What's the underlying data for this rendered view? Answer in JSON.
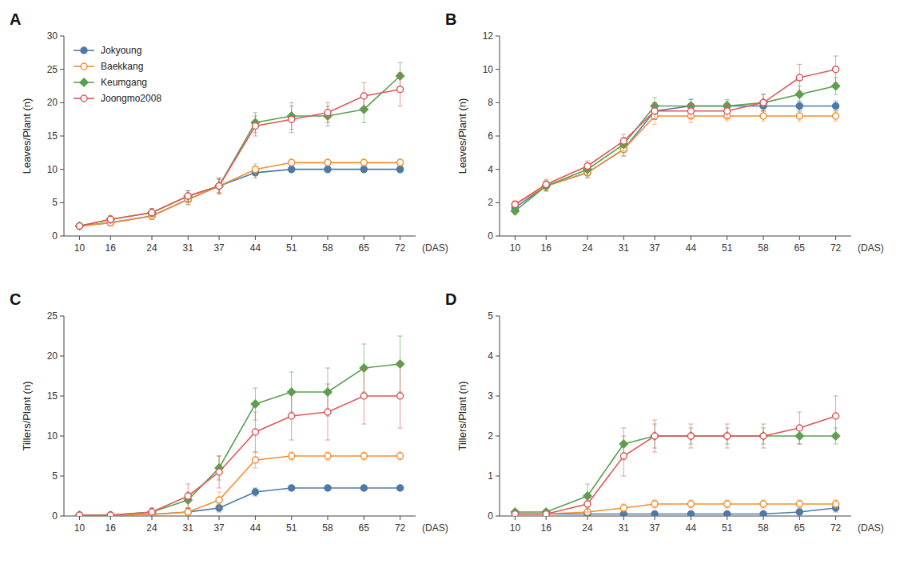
{
  "chart_data": [
    {
      "type": "line",
      "title": "A",
      "ylabel": "Leaves/Plant (n)",
      "xlabel": "(DAS)",
      "x": [
        10,
        16,
        24,
        31,
        37,
        44,
        51,
        58,
        65,
        72
      ],
      "xlim": [
        7,
        75
      ],
      "xticks": [
        10,
        16,
        24,
        31,
        37,
        44,
        51,
        58,
        65,
        72
      ],
      "ylim": [
        0,
        30
      ],
      "yticks": [
        0,
        5,
        10,
        15,
        20,
        25,
        30
      ],
      "grid": false,
      "legend": "upper left",
      "series": [
        {
          "name": "Jokyoung",
          "marker": "circle",
          "values": [
            1.5,
            2.0,
            3.0,
            5.5,
            7.5,
            9.5,
            10.0,
            10.0,
            10.0,
            10.0
          ],
          "errors": [
            0.3,
            0.4,
            0.5,
            0.8,
            1.0,
            0.8,
            0.5,
            0.5,
            0.5,
            0.5
          ]
        },
        {
          "name": "Baekkang",
          "marker": "open-circle",
          "values": [
            1.5,
            2.0,
            3.0,
            5.5,
            7.5,
            10.0,
            11.0,
            11.0,
            11.0,
            11.0
          ],
          "errors": [
            0.3,
            0.4,
            0.5,
            0.8,
            1.0,
            0.8,
            0.5,
            0.5,
            0.5,
            0.5
          ]
        },
        {
          "name": "Keumgang",
          "marker": "diamond",
          "values": [
            1.5,
            2.5,
            3.5,
            6.0,
            7.5,
            17.0,
            18.0,
            18.0,
            19.0,
            24.0
          ],
          "errors": [
            0.3,
            0.5,
            0.6,
            0.8,
            1.2,
            1.5,
            2.0,
            1.5,
            2.0,
            2.0
          ]
        },
        {
          "name": "Joongmo2008",
          "marker": "open-circle",
          "values": [
            1.5,
            2.5,
            3.5,
            6.0,
            7.5,
            16.5,
            17.5,
            18.5,
            21.0,
            22.0
          ],
          "errors": [
            0.3,
            0.5,
            0.6,
            0.8,
            1.2,
            1.5,
            2.0,
            1.5,
            2.0,
            2.5
          ]
        }
      ]
    },
    {
      "type": "line",
      "title": "B",
      "ylabel": "Leaves/Plant (n)",
      "xlabel": "(DAS)",
      "x": [
        10,
        16,
        24,
        31,
        37,
        44,
        51,
        58,
        65,
        72
      ],
      "xlim": [
        7,
        75
      ],
      "xticks": [
        10,
        16,
        24,
        31,
        37,
        44,
        51,
        58,
        65,
        72
      ],
      "ylim": [
        0,
        12
      ],
      "yticks": [
        0,
        2,
        4,
        6,
        8,
        10,
        12
      ],
      "grid": false,
      "series": [
        {
          "name": "Jokyoung",
          "marker": "circle",
          "values": [
            1.7,
            3.0,
            3.8,
            5.2,
            7.5,
            7.8,
            7.8,
            7.8,
            7.8,
            7.8
          ],
          "errors": [
            0.2,
            0.3,
            0.3,
            0.4,
            0.5,
            0.4,
            0.3,
            0.3,
            0.3,
            0.3
          ]
        },
        {
          "name": "Baekkang",
          "marker": "open-circle",
          "values": [
            1.9,
            3.0,
            3.8,
            5.2,
            7.2,
            7.2,
            7.2,
            7.2,
            7.2,
            7.2
          ],
          "errors": [
            0.2,
            0.3,
            0.3,
            0.4,
            0.5,
            0.4,
            0.3,
            0.3,
            0.3,
            0.3
          ]
        },
        {
          "name": "Keumgang",
          "marker": "diamond",
          "values": [
            1.5,
            3.0,
            4.0,
            5.5,
            7.8,
            7.8,
            7.8,
            8.0,
            8.5,
            9.0
          ],
          "errors": [
            0.2,
            0.3,
            0.3,
            0.4,
            0.5,
            0.4,
            0.4,
            0.5,
            0.5,
            0.5
          ]
        },
        {
          "name": "Joongmo2008",
          "marker": "open-circle",
          "values": [
            1.9,
            3.1,
            4.2,
            5.7,
            7.5,
            7.5,
            7.5,
            8.0,
            9.5,
            10.0
          ],
          "errors": [
            0.2,
            0.3,
            0.3,
            0.4,
            0.5,
            0.4,
            0.4,
            0.5,
            0.8,
            0.8
          ]
        }
      ]
    },
    {
      "type": "line",
      "title": "C",
      "ylabel": "Tillers/Plant (n)",
      "xlabel": "(DAS)",
      "x": [
        10,
        16,
        24,
        31,
        37,
        44,
        51,
        58,
        65,
        72
      ],
      "xlim": [
        7,
        75
      ],
      "xticks": [
        10,
        16,
        24,
        31,
        37,
        44,
        51,
        58,
        65,
        72
      ],
      "ylim": [
        0,
        25
      ],
      "yticks": [
        0,
        5,
        10,
        15,
        20,
        25
      ],
      "grid": false,
      "series": [
        {
          "name": "Jokyoung",
          "marker": "circle",
          "values": [
            0.1,
            0.1,
            0.2,
            0.5,
            1.0,
            3.0,
            3.5,
            3.5,
            3.5,
            3.5
          ],
          "errors": [
            0.1,
            0.1,
            0.2,
            0.5,
            0.5,
            0.5,
            0.3,
            0.3,
            0.3,
            0.3
          ]
        },
        {
          "name": "Baekkang",
          "marker": "open-circle",
          "values": [
            0.1,
            0.1,
            0.2,
            0.5,
            2.0,
            7.0,
            7.5,
            7.5,
            7.5,
            7.5
          ],
          "errors": [
            0.1,
            0.1,
            0.2,
            0.5,
            1.0,
            1.0,
            0.5,
            0.5,
            0.5,
            0.5
          ]
        },
        {
          "name": "Keumgang",
          "marker": "diamond",
          "values": [
            0.1,
            0.1,
            0.5,
            2.0,
            6.0,
            14.0,
            15.5,
            15.5,
            18.5,
            19.0
          ],
          "errors": [
            0.1,
            0.2,
            0.5,
            1.0,
            1.5,
            2.0,
            2.5,
            3.0,
            3.0,
            3.5
          ]
        },
        {
          "name": "Joongmo2008",
          "marker": "open-circle",
          "values": [
            0.1,
            0.1,
            0.5,
            2.5,
            5.5,
            10.5,
            12.5,
            13.0,
            15.0,
            15.0
          ],
          "errors": [
            0.1,
            0.2,
            0.5,
            1.5,
            2.0,
            2.5,
            3.0,
            3.5,
            3.5,
            4.0
          ]
        }
      ]
    },
    {
      "type": "line",
      "title": "D",
      "ylabel": "Tillers/Plant (n)",
      "xlabel": "(DAS)",
      "x": [
        10,
        16,
        24,
        31,
        37,
        44,
        51,
        58,
        65,
        72
      ],
      "xlim": [
        7,
        75
      ],
      "xticks": [
        10,
        16,
        24,
        31,
        37,
        44,
        51,
        58,
        65,
        72
      ],
      "ylim": [
        0,
        5
      ],
      "yticks": [
        0,
        1,
        2,
        3,
        4,
        5
      ],
      "grid": false,
      "series": [
        {
          "name": "Jokyoung",
          "marker": "circle",
          "values": [
            0.05,
            0.05,
            0.05,
            0.05,
            0.05,
            0.05,
            0.05,
            0.05,
            0.1,
            0.2
          ],
          "errors": [
            0.02,
            0.02,
            0.02,
            0.02,
            0.02,
            0.02,
            0.02,
            0.02,
            0.05,
            0.1
          ]
        },
        {
          "name": "Baekkang",
          "marker": "open-circle",
          "values": [
            0.05,
            0.05,
            0.1,
            0.2,
            0.3,
            0.3,
            0.3,
            0.3,
            0.3,
            0.3
          ],
          "errors": [
            0.02,
            0.02,
            0.05,
            0.1,
            0.1,
            0.1,
            0.1,
            0.1,
            0.1,
            0.1
          ]
        },
        {
          "name": "Keumgang",
          "marker": "diamond",
          "values": [
            0.1,
            0.1,
            0.5,
            1.8,
            2.0,
            2.0,
            2.0,
            2.0,
            2.0,
            2.0
          ],
          "errors": [
            0.05,
            0.05,
            0.3,
            0.4,
            0.3,
            0.2,
            0.2,
            0.2,
            0.2,
            0.2
          ]
        },
        {
          "name": "Joongmo2008",
          "marker": "open-circle",
          "values": [
            0.05,
            0.05,
            0.3,
            1.5,
            2.0,
            2.0,
            2.0,
            2.0,
            2.2,
            2.5
          ],
          "errors": [
            0.02,
            0.02,
            0.2,
            0.5,
            0.4,
            0.3,
            0.3,
            0.3,
            0.4,
            0.5
          ]
        }
      ]
    }
  ]
}
